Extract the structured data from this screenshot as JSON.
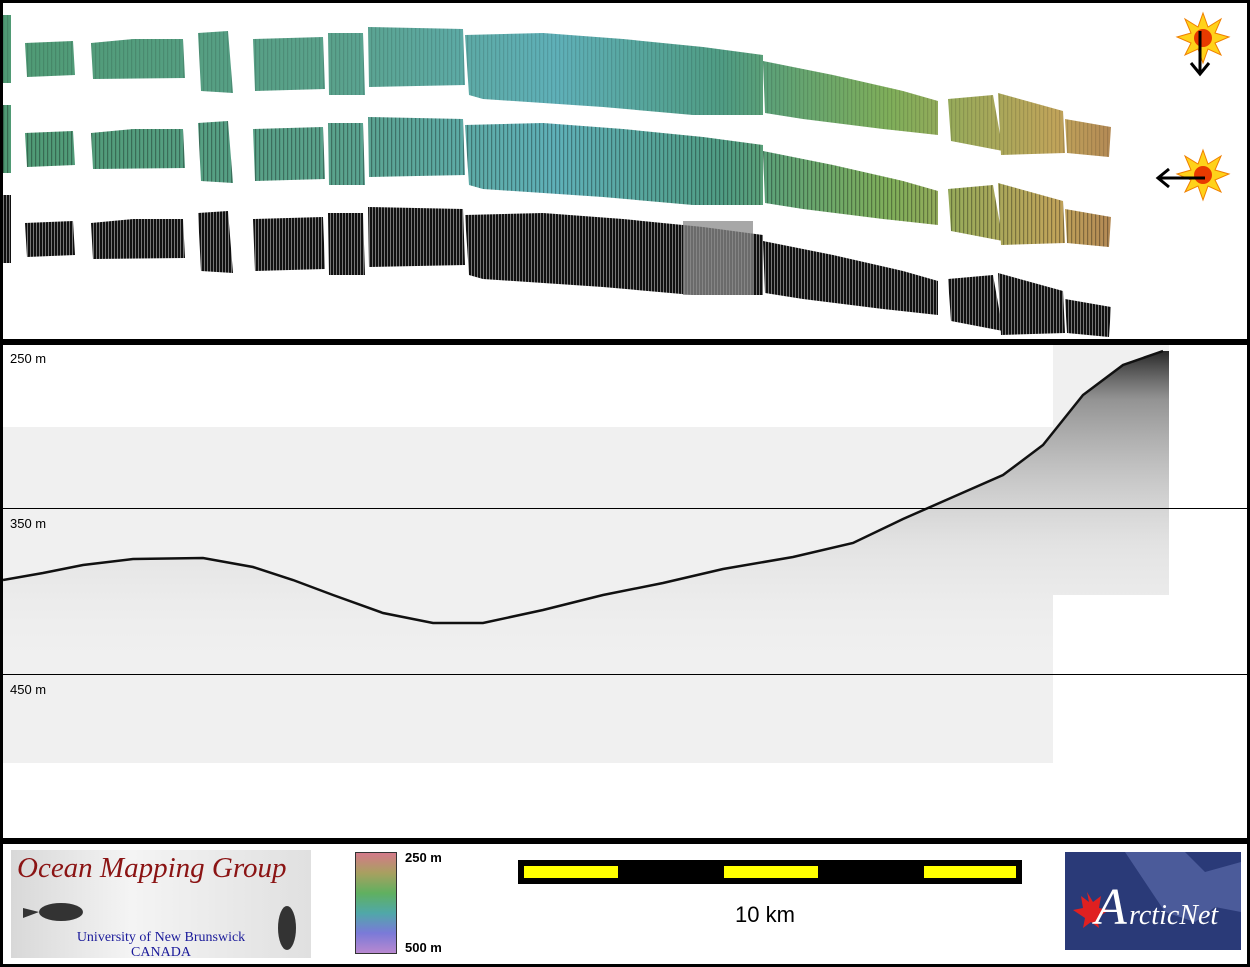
{
  "depth_labels": [
    "250 m",
    "350 m",
    "450 m"
  ],
  "colorbar": {
    "top_label": "250 m",
    "bottom_label": "500 m"
  },
  "scale_bar": {
    "label": "10 km",
    "bar_color": "#ffff00"
  },
  "logos": {
    "omg": {
      "title": "Ocean Mapping Group",
      "line1": "University of New Brunswick",
      "line2": "CANADA"
    },
    "arcticnet": {
      "initial": "A",
      "rest": "rcticNet"
    }
  },
  "sun_icons": [
    "sun-icon",
    "sun-icon"
  ],
  "arrow_icons": [
    "arrow-down-icon",
    "arrow-left-icon"
  ]
}
